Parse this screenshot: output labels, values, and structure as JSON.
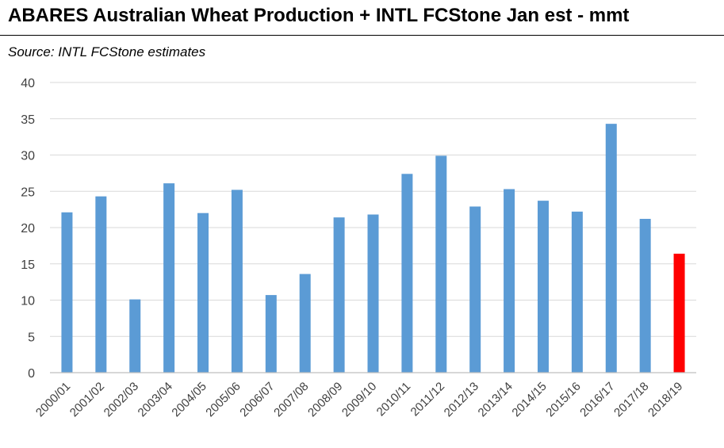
{
  "header": {
    "title": "ABARES Australian Wheat Production + INTL FCStone Jan est - mmt",
    "subtitle": "Source: INTL FCStone estimates"
  },
  "colors": {
    "bar": "#5b9bd5",
    "highlight": "#ff0000",
    "grid": "#d9d9d9",
    "axis": "#bfbfbf"
  },
  "chart_data": {
    "type": "bar",
    "title": "ABARES Australian Wheat Production + INTL FCStone Jan est - mmt",
    "subtitle": "Source: INTL FCStone estimates",
    "xlabel": "",
    "ylabel": "",
    "ylim": [
      0,
      40
    ],
    "yticks": [
      0,
      5,
      10,
      15,
      20,
      25,
      30,
      35,
      40
    ],
    "grid": true,
    "legend": "none",
    "categories": [
      "2000/01",
      "2001/02",
      "2002/03",
      "2003/04",
      "2004/05",
      "2005/06",
      "2006/07",
      "2007/08",
      "2008/09",
      "2009/10",
      "2010/11",
      "2011/12",
      "2012/13",
      "2013/14",
      "2014/15",
      "2015/16",
      "2016/17",
      "2017/18",
      "2018/19"
    ],
    "values": [
      22.1,
      24.3,
      10.1,
      26.1,
      22.0,
      25.2,
      10.7,
      13.6,
      21.4,
      21.8,
      27.4,
      29.9,
      22.9,
      25.3,
      23.7,
      22.2,
      34.3,
      21.2,
      16.4
    ],
    "highlight_index": 18
  }
}
